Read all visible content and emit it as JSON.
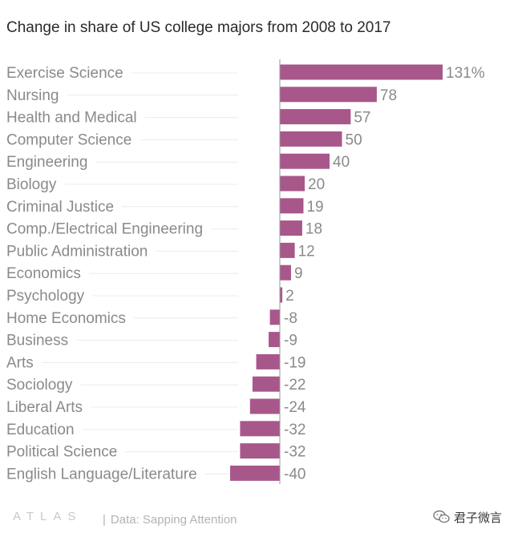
{
  "chart_data": {
    "type": "bar",
    "orientation": "horizontal",
    "title": "Change in share of US college majors from 2008 to 2017",
    "categories": [
      "Exercise Science",
      "Nursing",
      "Health and Medical",
      "Computer Science",
      "Engineering",
      "Biology",
      "Criminal Justice",
      "Comp./Electrical Engineering",
      "Public Administration",
      "Economics",
      "Psychology",
      "Home Economics",
      "Business",
      "Arts",
      "Sociology",
      "Liberal Arts",
      "Education",
      "Political Science",
      "English Language/Literature"
    ],
    "values": [
      131,
      78,
      57,
      50,
      40,
      20,
      19,
      18,
      12,
      9,
      2,
      -8,
      -9,
      -19,
      -22,
      -24,
      -32,
      -32,
      -40
    ],
    "value_labels": [
      "131%",
      "78",
      "57",
      "50",
      "40",
      "20",
      "19",
      "18",
      "12",
      "9",
      "2",
      "-8",
      "-9",
      "-19",
      "-22",
      "-24",
      "-32",
      "-32",
      "-40"
    ],
    "xlim": [
      -40,
      131
    ],
    "unit": "%",
    "grid": false,
    "bar_color": "#a8578a",
    "zero_line_color": "#9a9a9a"
  },
  "footer": {
    "brand": "ATLAS",
    "separator": "|",
    "source": "Data: Sapping Attention",
    "wechat_account": "君子微言"
  }
}
